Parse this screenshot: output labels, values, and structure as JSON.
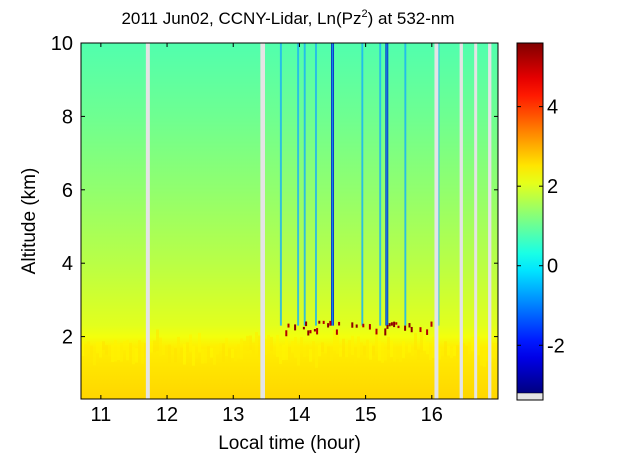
{
  "chart_data": {
    "type": "heatmap",
    "title": {
      "prefix": "2011 Jun02, CCNY-Lidar, Ln(Pz",
      "sup": "2",
      "suffix": ") at 532-nm"
    },
    "xlabel": "Local time (hour)",
    "ylabel": "Altitude (km)",
    "xlim": [
      10.7,
      17.0
    ],
    "ylim": [
      0.3,
      10.0
    ],
    "xticks": [
      "11",
      "12",
      "13",
      "14",
      "15",
      "16"
    ],
    "yticks": [
      "2",
      "4",
      "6",
      "8",
      "10"
    ],
    "colorbar": {
      "colormap": "jet",
      "range": [
        -3.2,
        5.6
      ],
      "ticks": [
        "-2",
        "0",
        "2",
        "4"
      ]
    },
    "boundary_layer_top_km": 2.3,
    "values_profile": {
      "altitude_km": [
        0.3,
        1.7,
        2.0,
        2.3,
        4.0,
        6.0,
        8.0,
        10.0
      ],
      "ln_pz2": [
        2.65,
        2.45,
        2.2,
        2.05,
        1.7,
        1.35,
        1.05,
        0.8
      ]
    },
    "data_gaps_hour": [
      [
        11.68,
        11.74
      ],
      [
        13.41,
        13.48
      ],
      [
        16.04,
        16.1
      ],
      [
        16.42,
        16.47
      ],
      [
        16.64,
        16.68
      ],
      [
        16.85,
        16.9
      ]
    ],
    "cloud_streaks_hour": [
      13.72,
      13.98,
      14.08,
      14.25,
      14.5,
      14.95,
      15.22,
      15.32,
      15.6,
      16.1
    ],
    "cloud_base_colors": [
      "#8b0000",
      "#b50000"
    ],
    "background_color": "#ffffff"
  }
}
